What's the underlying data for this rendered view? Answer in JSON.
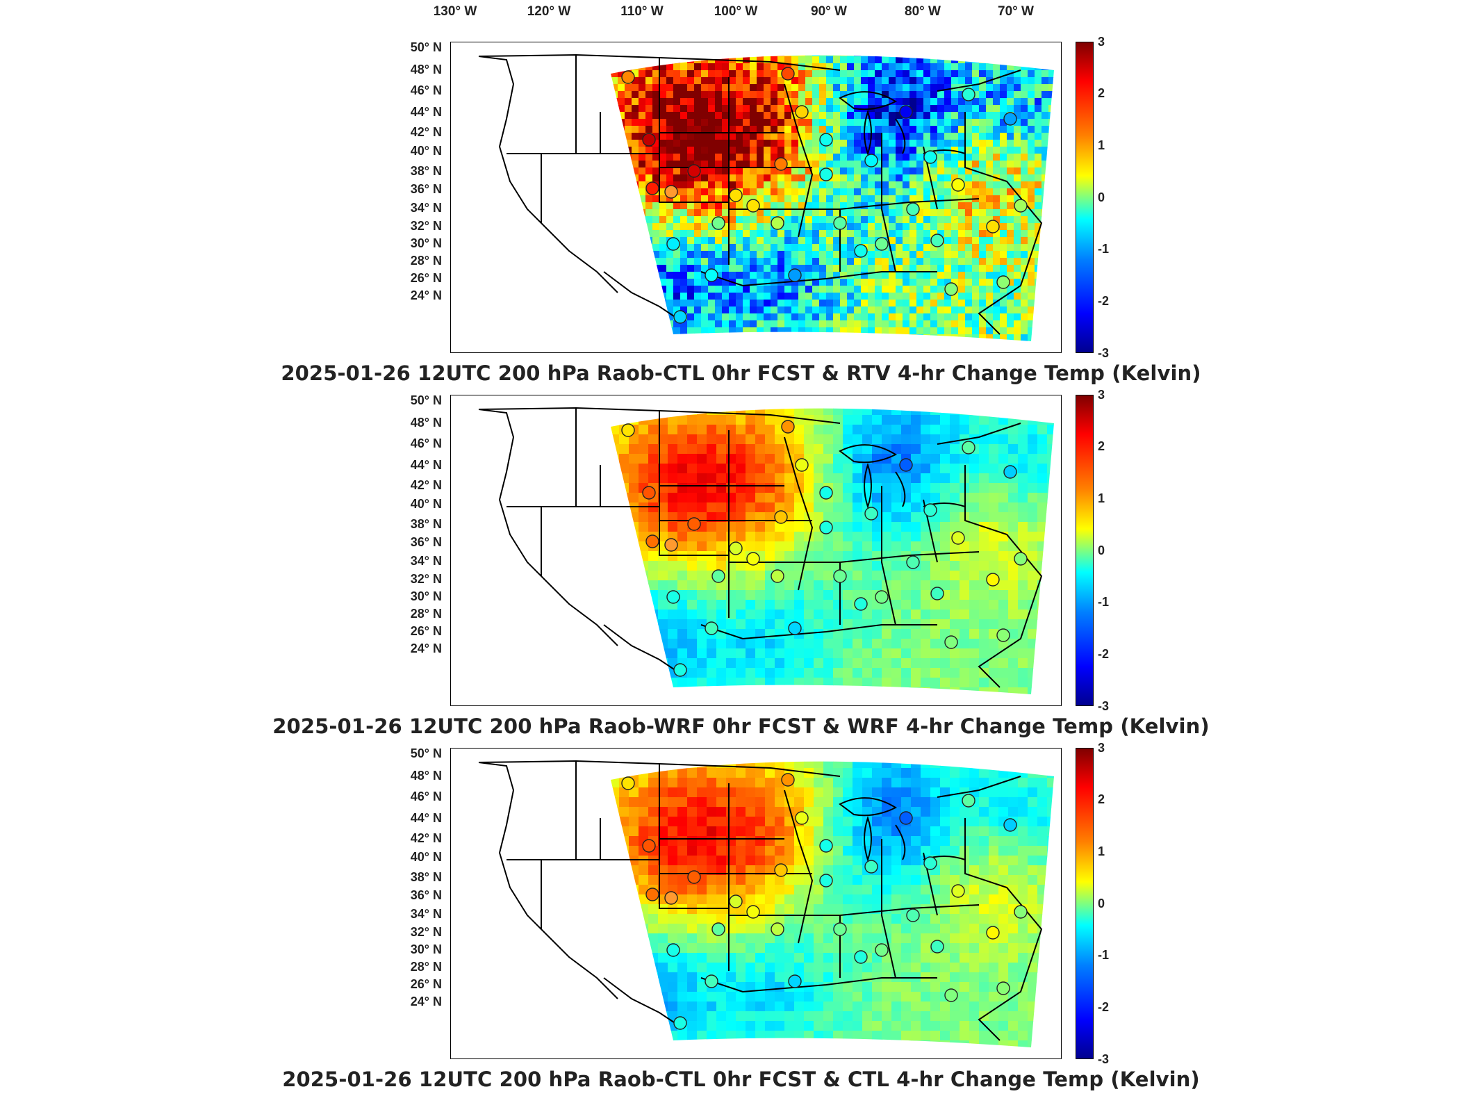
{
  "longitude_labels": [
    "130° W",
    "120° W",
    "110° W",
    "100° W",
    "90° W",
    "80° W",
    "70° W"
  ],
  "latitude_labels": [
    "50° N",
    "48° N",
    "46° N",
    "44° N",
    "42° N",
    "40° N",
    "38° N",
    "36° N",
    "34° N",
    "32° N",
    "30° N",
    "28° N",
    "26° N",
    "24° N"
  ],
  "colorbar": {
    "ticks": [
      "3",
      "2",
      "1",
      "0",
      "-1",
      "-2",
      "-3"
    ],
    "range": [
      -3,
      3
    ],
    "colormap": "jet",
    "colors": [
      "#00008f",
      "#0000ff",
      "#007fff",
      "#00ffff",
      "#7fff7f",
      "#ffff00",
      "#ff7f00",
      "#ff0000",
      "#7f0000"
    ]
  },
  "panels": [
    {
      "title": "2025-01-26 12UTC 200 hPa Raob-CTL 0hr FCST & RTV 4-hr Change Temp (Kelvin)"
    },
    {
      "title": "2025-01-26 12UTC 200 hPa Raob-WRF 0hr FCST & WRF 4-hr Change Temp (Kelvin)"
    },
    {
      "title": "2025-01-26 12UTC 200 hPa Raob-CTL 0hr FCST & CTL 4-hr Change Temp (Kelvin)"
    }
  ]
}
